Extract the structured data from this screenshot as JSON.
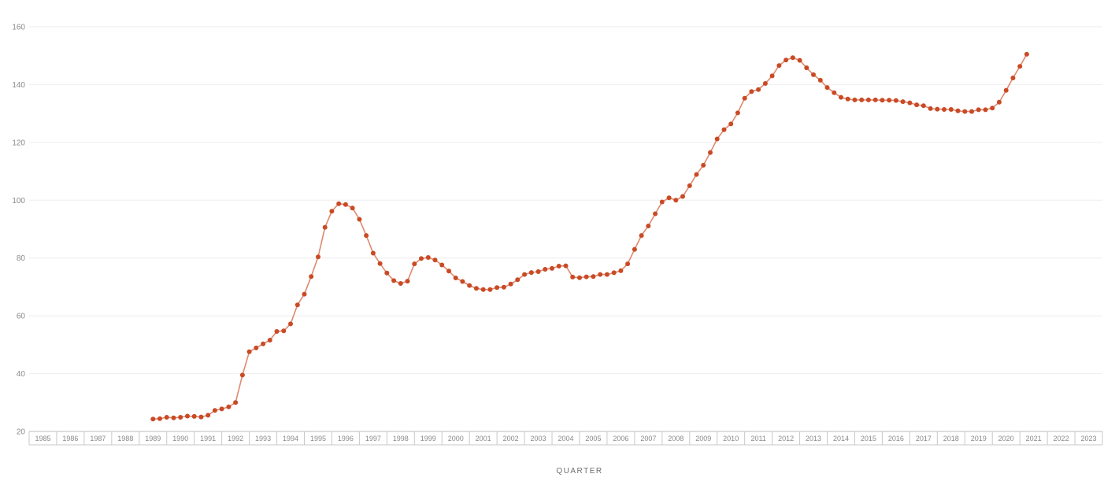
{
  "chart_data": {
    "type": "line",
    "xlabel": "QUARTER",
    "ylabel": "",
    "title": "",
    "ylim": [
      20,
      160
    ],
    "yticks": [
      20,
      40,
      60,
      80,
      100,
      120,
      140,
      160
    ],
    "xlim": [
      1985,
      2024
    ],
    "xticks": [
      "1985",
      "1986",
      "1987",
      "1988",
      "1989",
      "1990",
      "1991",
      "1992",
      "1993",
      "1994",
      "1995",
      "1996",
      "1997",
      "1998",
      "1999",
      "2000",
      "2001",
      "2002",
      "2003",
      "2004",
      "2005",
      "2006",
      "2007",
      "2008",
      "2009",
      "2010",
      "2011",
      "2012",
      "2013",
      "2014",
      "2015",
      "2016",
      "2017",
      "2018",
      "2019",
      "2020",
      "2021",
      "2022",
      "2023"
    ],
    "grid": true,
    "legend": "none",
    "color": "#c94a25",
    "line_color": "#df8a6e",
    "series": [
      {
        "x": [
          1989.5,
          1989.75,
          1990,
          1990.25,
          1990.5,
          1990.75,
          1991,
          1991.25,
          1991.5,
          1991.75,
          1992,
          1992.25,
          1992.5,
          1992.75,
          1993,
          1993.25,
          1993.5,
          1993.75,
          1994,
          1994.25,
          1994.5,
          1994.75,
          1995,
          1995.25,
          1995.5,
          1995.75,
          1996,
          1996.25,
          1996.5,
          1996.75,
          1997,
          1997.25,
          1997.5,
          1997.75,
          1998,
          1998.25,
          1998.5,
          1998.75,
          1999,
          1999.25,
          1999.5,
          1999.75,
          2000,
          2000.25,
          2000.5,
          2000.75,
          2001,
          2001.25,
          2001.5,
          2001.75,
          2002,
          2002.25,
          2002.5,
          2002.75,
          2003,
          2003.25,
          2003.5,
          2003.75,
          2004,
          2004.25,
          2004.5,
          2004.75,
          2005,
          2005.25,
          2005.5,
          2005.75,
          2006,
          2006.25,
          2006.5,
          2006.75,
          2007,
          2007.25,
          2007.5,
          2007.75,
          2008,
          2008.25,
          2008.5,
          2008.75,
          2009,
          2009.25,
          2009.5,
          2009.75,
          2010,
          2010.25,
          2010.5,
          2010.75,
          2011,
          2011.25,
          2011.5,
          2011.75,
          2012,
          2012.25,
          2012.5,
          2012.75,
          2013,
          2013.25,
          2013.5,
          2013.75,
          2014,
          2014.25,
          2014.5,
          2014.75,
          2015,
          2015.25,
          2015.5,
          2015.75,
          2016,
          2016.25,
          2016.5,
          2016.75,
          2017,
          2017.25,
          2017.5,
          2017.75,
          2018,
          2018.25,
          2018.5,
          2018.75,
          2019,
          2019.25,
          2019.5,
          2019.75,
          2020,
          2020.25,
          2020.5,
          2020.75,
          2021,
          2021.25
        ],
        "y": [
          24.3,
          24.4,
          24.9,
          24.7,
          24.9,
          25.3,
          25.2,
          25.0,
          25.6,
          27.3,
          27.8,
          28.5,
          30.0,
          39.5,
          47.6,
          48.9,
          50.3,
          51.6,
          54.6,
          54.8,
          57.2,
          63.8,
          67.5,
          73.6,
          80.4,
          90.6,
          96.2,
          98.8,
          98.5,
          97.3,
          93.4,
          87.8,
          81.7,
          78.1,
          74.8,
          72.2,
          71.2,
          72.0,
          78.0,
          79.8,
          80.2,
          79.3,
          77.6,
          75.5,
          73.1,
          71.9,
          70.5,
          69.5,
          69.1,
          69.1,
          69.8,
          69.9,
          71.0,
          72.5,
          74.3,
          75.0,
          75.3,
          76.1,
          76.4,
          77.2,
          77.3,
          73.4,
          73.2,
          73.5,
          73.6,
          74.3,
          74.3,
          74.9,
          75.6,
          78.0,
          83.0,
          87.8,
          91.1,
          95.3,
          99.4,
          100.8,
          100.0,
          101.3,
          105.0,
          108.9,
          112.1,
          116.5,
          121.2,
          124.4,
          126.4,
          130.2,
          135.3,
          137.6,
          138.3,
          140.4,
          143.0,
          146.6,
          148.5,
          149.3,
          148.4,
          145.8,
          143.4,
          141.5,
          139.0,
          137.2,
          135.6,
          135.0,
          134.7,
          134.7,
          134.7,
          134.7,
          134.6,
          134.6,
          134.5,
          134.1,
          133.7,
          133.0,
          132.7,
          131.7,
          131.5,
          131.4,
          131.4,
          130.9,
          130.7,
          130.7,
          131.3,
          131.3,
          131.9,
          133.9,
          138.0,
          142.3,
          146.3,
          150.5
        ]
      }
    ]
  }
}
